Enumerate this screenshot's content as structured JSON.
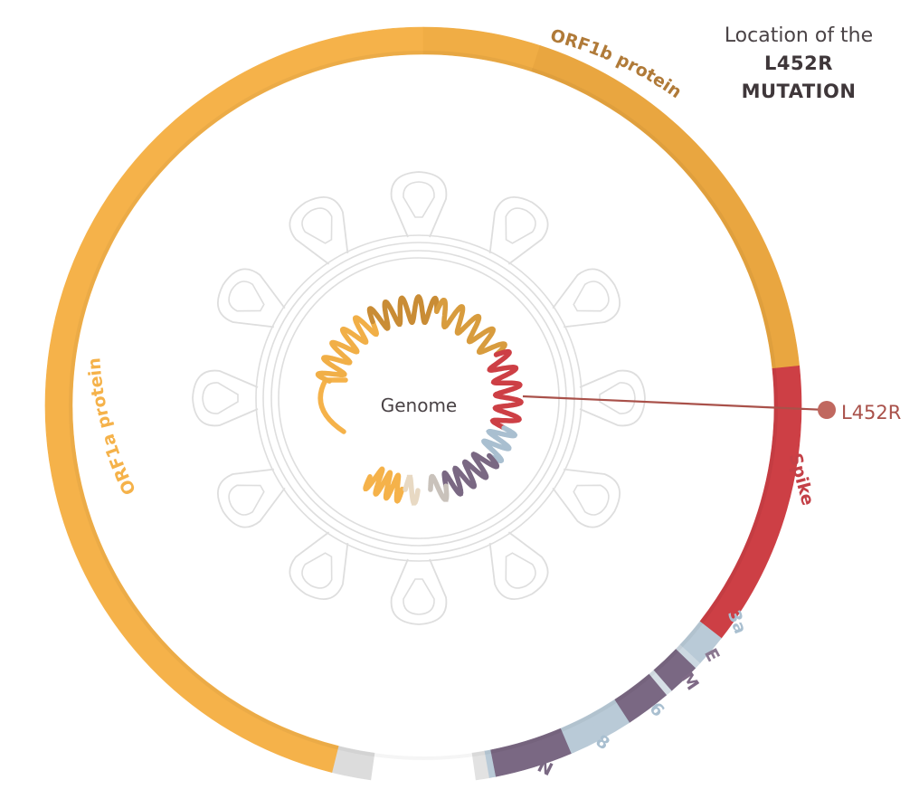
{
  "title": {
    "line1": "Location of the",
    "line2": "L452R",
    "line3": "MUTATION"
  },
  "center_label": "Genome",
  "mutation_label": "L452R",
  "genes": [
    {
      "id": "orf1a",
      "label": "ORF1a protein",
      "color": "#f5b24a"
    },
    {
      "id": "orf1b",
      "label": "ORF1b protein",
      "color": "#e9a640"
    },
    {
      "id": "spike",
      "label": "Spike",
      "color": "#cd3f45"
    },
    {
      "id": "orf3a",
      "label": "3a",
      "color": "#a9bfd0"
    },
    {
      "id": "e",
      "label": "E",
      "color": "#8a7790"
    },
    {
      "id": "m",
      "label": "M",
      "color": "#7f6a86"
    },
    {
      "id": "orf6",
      "label": "6",
      "color": "#a9bfd0"
    },
    {
      "id": "orf8",
      "label": "8",
      "color": "#a9bfd0"
    },
    {
      "id": "n",
      "label": "N",
      "color": "#7a6883"
    }
  ],
  "colors": {
    "orf1a": "#f5b24a",
    "orf1b": "#e9a640",
    "spike": "#cd3f45",
    "accessory": "#a9bfd0",
    "structural": "#7a6883",
    "mutation": "#c0685f",
    "virus_outline": "#dcdcdc"
  },
  "icons": {
    "virus": "coronavirus-outline-icon",
    "marker": "mutation-marker-dot"
  }
}
